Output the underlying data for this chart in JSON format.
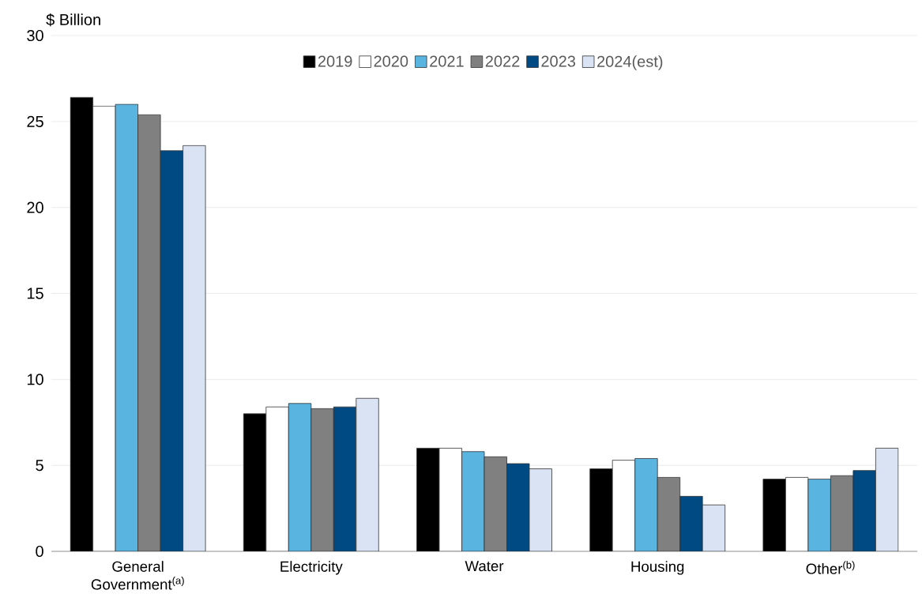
{
  "chart_data": {
    "type": "bar",
    "ylabel": "$ Billion",
    "categories": [
      "General Government$^{(a)}$",
      "Electricity",
      "Water",
      "Housing",
      "Other$^{(b)}$"
    ],
    "series": [
      {
        "name": "2019",
        "color": "#000000",
        "values": [
          26.4,
          8.0,
          6.0,
          4.8,
          4.2
        ]
      },
      {
        "name": "2020",
        "color": "#ffffff",
        "values": [
          25.9,
          8.4,
          6.0,
          5.3,
          4.3
        ]
      },
      {
        "name": "2021",
        "color": "#5ab4e0",
        "values": [
          26.0,
          8.6,
          5.8,
          5.4,
          4.2
        ]
      },
      {
        "name": "2022",
        "color": "#808080",
        "values": [
          25.4,
          8.3,
          5.5,
          4.3,
          4.4
        ]
      },
      {
        "name": "2023",
        "color": "#004a84",
        "values": [
          23.3,
          8.4,
          5.1,
          3.2,
          4.7
        ]
      },
      {
        "name": "2024(est)",
        "color": "#dae3f3",
        "values": [
          23.6,
          8.9,
          4.8,
          2.7,
          6.0
        ]
      }
    ],
    "ylim": [
      0,
      30
    ],
    "yticks": [
      0,
      5,
      10,
      15,
      20,
      25,
      30
    ],
    "grid": "y",
    "legend": "top"
  }
}
